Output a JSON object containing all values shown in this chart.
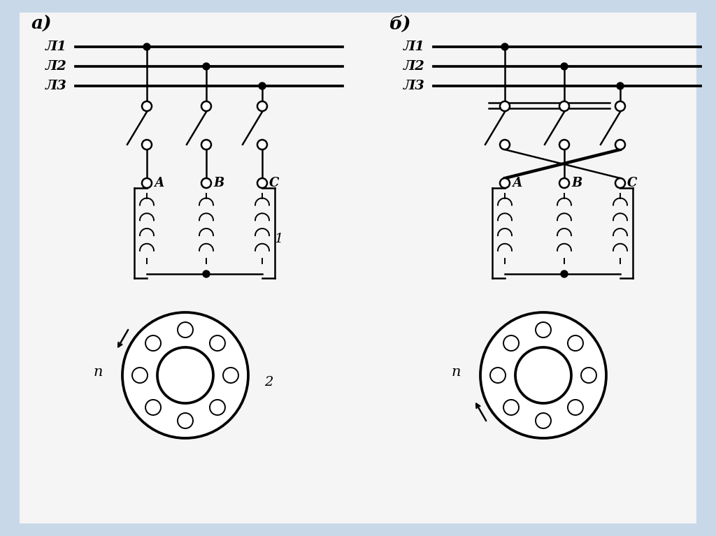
{
  "bg_color": "#c8d8e8",
  "panel_color": "#f5f5f5",
  "line_color": "#000000",
  "label_a": "а)",
  "label_b": "б)",
  "label_L1": "Л1",
  "label_L2": "Л2",
  "label_L3": "Л3",
  "label_A": "А",
  "label_B": "В",
  "label_C": "С",
  "label_1": "1",
  "label_2": "2",
  "label_n": "n"
}
